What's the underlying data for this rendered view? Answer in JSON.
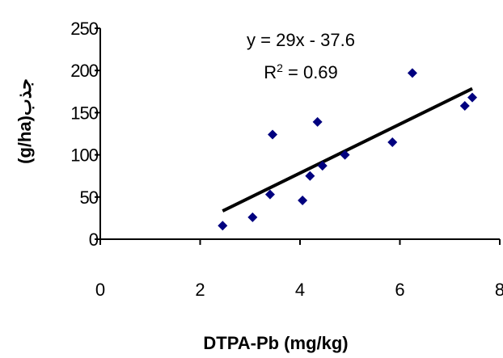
{
  "chart_data": {
    "type": "scatter",
    "xlabel": "DTPA-Pb (mg/kg)",
    "ylabel": "(g/ha)جذب",
    "xlim": [
      0,
      8
    ],
    "ylim": [
      0,
      250
    ],
    "x_ticks": [
      "0",
      "2",
      "4",
      "6",
      "8"
    ],
    "y_ticks": [
      "0",
      "50",
      "100",
      "150",
      "200",
      "250"
    ],
    "grid": false,
    "legend": "none",
    "marker_color": "#00007f",
    "trendline_color": "#000000",
    "points": [
      {
        "x": 2.45,
        "y": 16
      },
      {
        "x": 3.05,
        "y": 26
      },
      {
        "x": 3.4,
        "y": 53
      },
      {
        "x": 3.45,
        "y": 124
      },
      {
        "x": 4.05,
        "y": 46
      },
      {
        "x": 4.2,
        "y": 75
      },
      {
        "x": 4.35,
        "y": 139
      },
      {
        "x": 4.45,
        "y": 87
      },
      {
        "x": 4.9,
        "y": 100
      },
      {
        "x": 5.85,
        "y": 115
      },
      {
        "x": 6.25,
        "y": 197
      },
      {
        "x": 7.3,
        "y": 158
      },
      {
        "x": 7.45,
        "y": 168
      }
    ],
    "trendline": {
      "slope": 29,
      "intercept": -37.6,
      "x_range": [
        2.45,
        7.45
      ],
      "equation": "y = 29x - 37.6",
      "r2_label": "R",
      "r2_sup": "2",
      "r2_value": " = 0.69"
    }
  }
}
